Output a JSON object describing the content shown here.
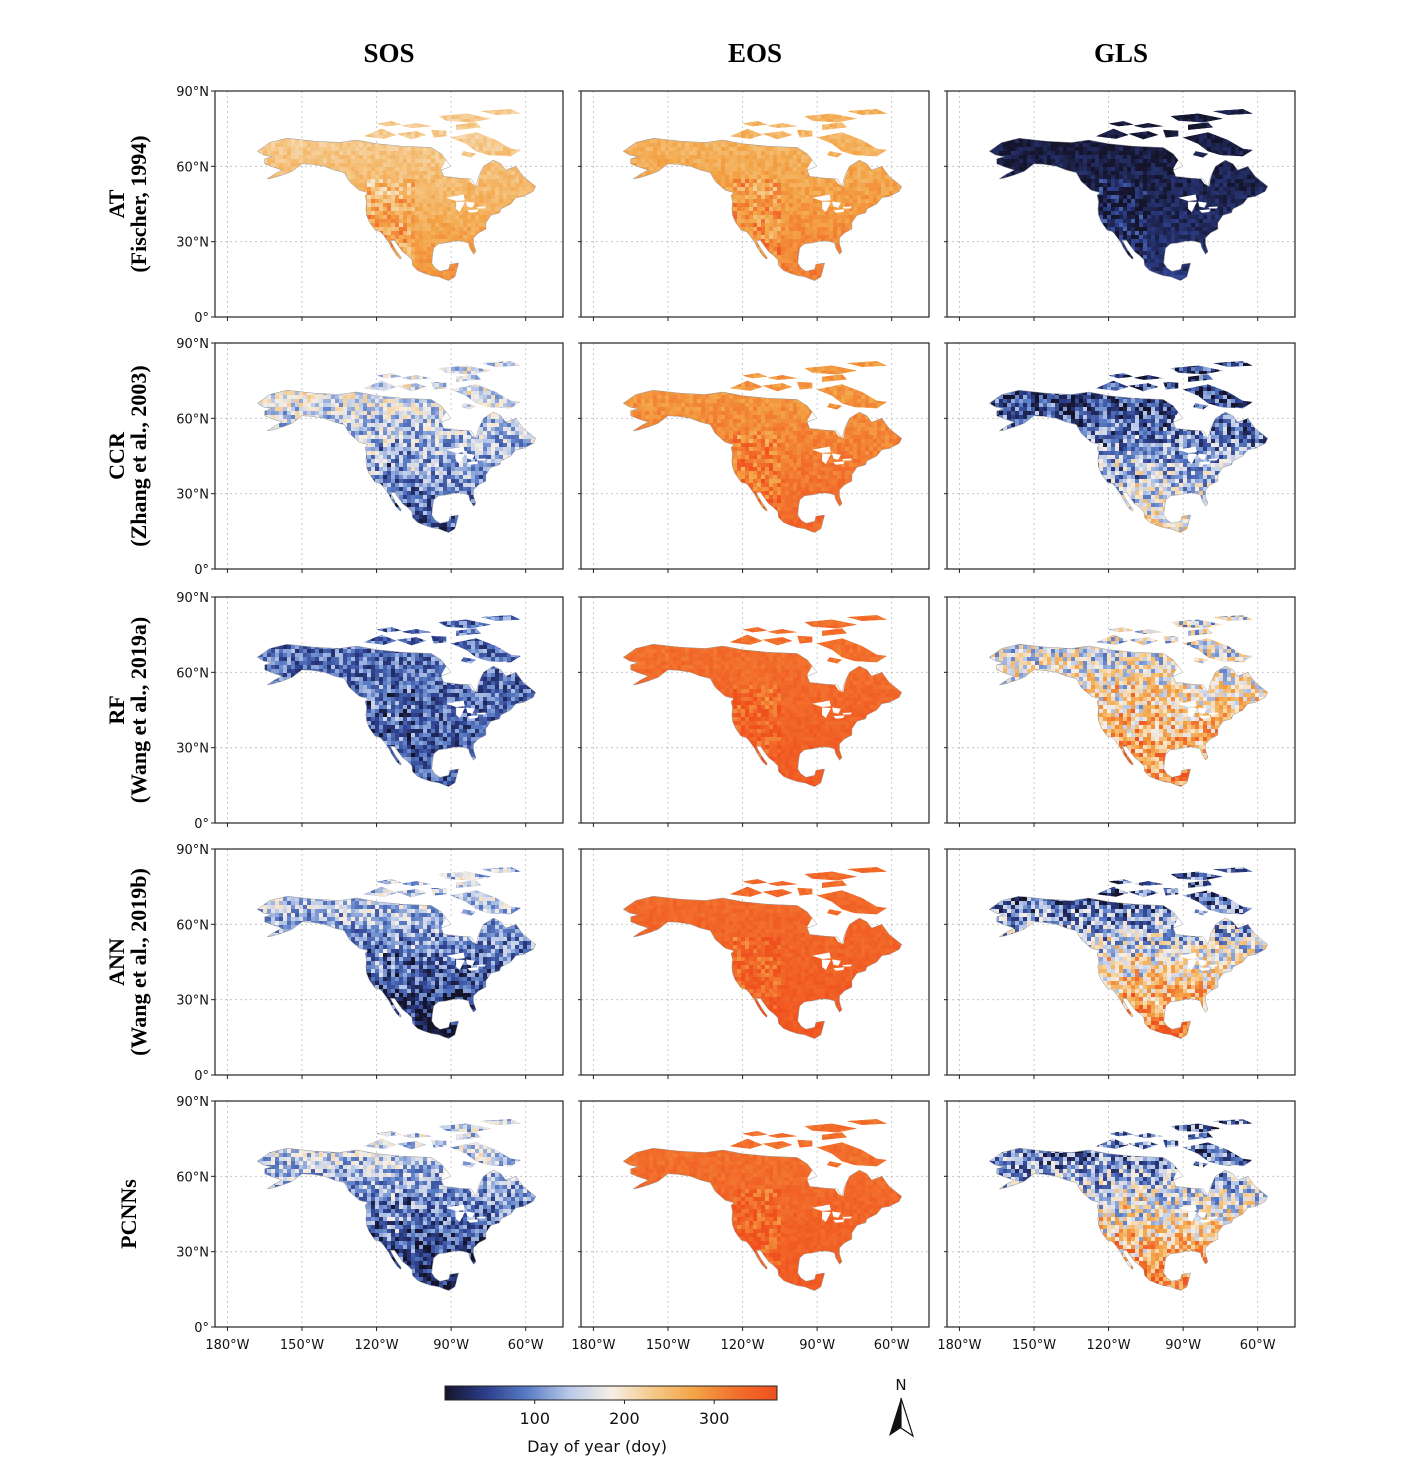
{
  "chart_data": {
    "type": "heatmap",
    "description_kind": "map-grid",
    "columns": [
      "SOS",
      "EOS",
      "GLS"
    ],
    "rows": [
      {
        "line1": "AT",
        "line2": "(Fischer, 1994)"
      },
      {
        "line1": "CCR",
        "line2": "(Zhang et al., 2003)"
      },
      {
        "line1": "RF",
        "line2": "(Wang et al., 2019a)"
      },
      {
        "line1": "ANN",
        "line2": "(Wang et al., 2019b)"
      },
      {
        "line1": "PCNNs",
        "line2": ""
      }
    ],
    "lat_ticks": [
      "90°N",
      "60°N",
      "30°N",
      "0°"
    ],
    "lon_ticks": [
      "180°W",
      "150°W",
      "120°W",
      "90°W",
      "60°W"
    ],
    "colorbar": {
      "label": "Day of year (doy)",
      "ticks": [
        100,
        200,
        300
      ],
      "range": [
        0,
        370
      ],
      "colors": [
        "#14142a",
        "#2d3f8c",
        "#5a7dc6",
        "#b9c9e8",
        "#f6efe6",
        "#f5c98a",
        "#f3a446",
        "#f2702d",
        "#f0501e"
      ]
    },
    "panel_levels": [
      [
        {
          "n": 0.62,
          "s": 0.8,
          "v": 0.05
        },
        {
          "n": 0.7,
          "s": 0.85,
          "v": 0.05
        },
        {
          "n": 0.02,
          "s": 0.1,
          "v": 0.05
        }
      ],
      [
        {
          "n": 0.46,
          "s": 0.18,
          "v": 0.18
        },
        {
          "n": 0.78,
          "s": 0.92,
          "v": 0.05
        },
        {
          "n": 0.12,
          "s": 0.55,
          "v": 0.22
        }
      ],
      [
        {
          "n": 0.22,
          "s": 0.18,
          "v": 0.15
        },
        {
          "n": 0.88,
          "s": 0.96,
          "v": 0.04
        },
        {
          "n": 0.45,
          "s": 0.82,
          "v": 0.25
        }
      ],
      [
        {
          "n": 0.4,
          "s": 0.0,
          "v": 0.18
        },
        {
          "n": 0.9,
          "s": 0.97,
          "v": 0.04
        },
        {
          "n": 0.2,
          "s": 0.9,
          "v": 0.25
        }
      ],
      [
        {
          "n": 0.42,
          "s": 0.02,
          "v": 0.18
        },
        {
          "n": 0.88,
          "s": 0.96,
          "v": 0.04
        },
        {
          "n": 0.22,
          "s": 0.88,
          "v": 0.25
        }
      ]
    ],
    "north_arrow": "N"
  }
}
